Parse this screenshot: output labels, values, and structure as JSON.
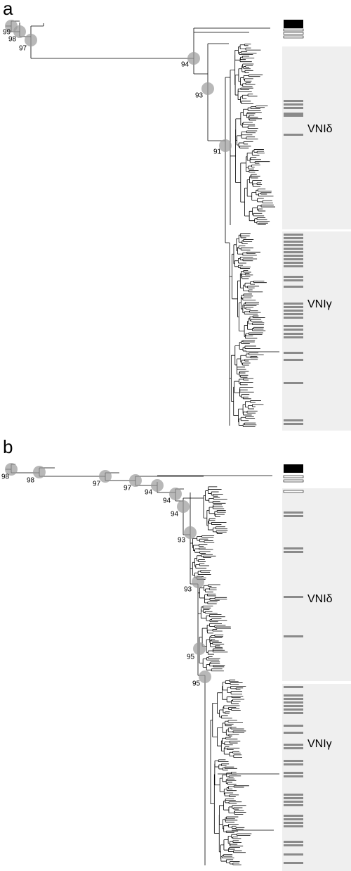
{
  "panels": [
    {
      "label": "a",
      "bootstrap": [
        99,
        98,
        97,
        94,
        93,
        91
      ],
      "clades": [
        "VNIδ",
        "VNIγ"
      ]
    },
    {
      "label": "b",
      "bootstrap": [
        98,
        98,
        97,
        97,
        94,
        94,
        94,
        93,
        93,
        95,
        95
      ],
      "clades": [
        "VNIδ",
        "VNIγ"
      ]
    }
  ]
}
